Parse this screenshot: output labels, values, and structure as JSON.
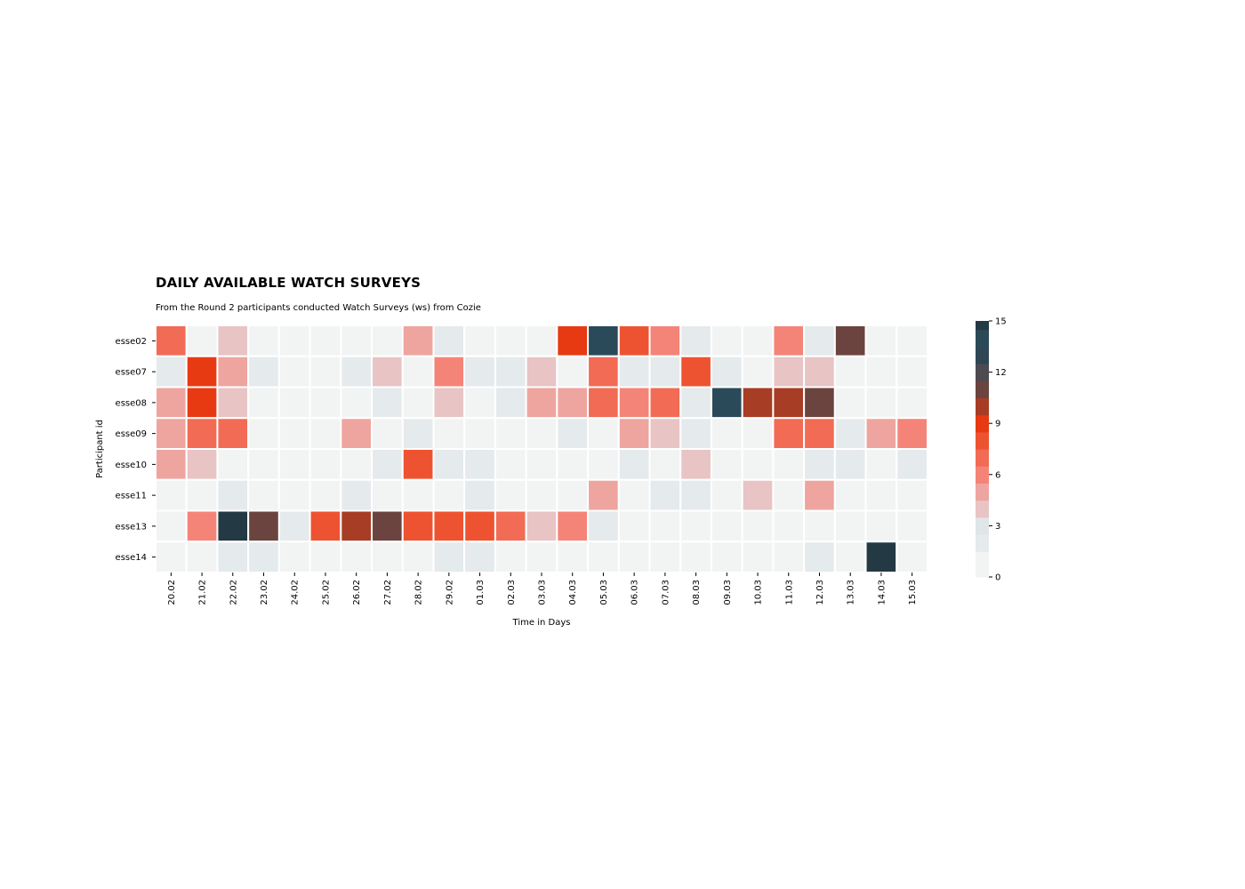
{
  "chart_data": {
    "type": "heatmap",
    "title": "DAILY AVAILABLE WATCH SURVEYS",
    "subtitle": "From the Round 2 participants conducted Watch Surveys (ws) from Cozie",
    "xlabel": "Time in Days",
    "ylabel": "Participant id",
    "x": [
      "20.02",
      "21.02",
      "22.02",
      "23.02",
      "24.02",
      "25.02",
      "26.02",
      "27.02",
      "28.02",
      "29.02",
      "01.03",
      "02.03",
      "03.03",
      "04.03",
      "05.03",
      "06.03",
      "07.03",
      "08.03",
      "09.03",
      "10.03",
      "11.03",
      "12.03",
      "13.03",
      "14.03",
      "15.03"
    ],
    "y": [
      "esse02",
      "esse07",
      "esse08",
      "esse09",
      "esse10",
      "esse11",
      "esse13",
      "esse14"
    ],
    "values": [
      [
        7,
        1,
        4,
        1,
        1,
        1,
        1,
        1,
        5,
        2,
        1,
        1,
        1,
        9,
        14,
        8,
        6,
        2,
        1,
        1,
        6,
        2,
        11,
        1,
        1
      ],
      [
        2,
        9,
        5,
        2,
        1,
        1,
        2,
        4,
        1,
        6,
        2,
        2,
        4,
        1,
        7,
        2,
        2,
        8,
        2,
        1,
        4,
        4,
        1,
        1,
        1
      ],
      [
        5,
        9,
        4,
        1,
        1,
        1,
        1,
        2,
        1,
        4,
        1,
        2,
        5,
        5,
        7,
        6,
        7,
        2,
        14,
        10,
        10,
        11,
        1,
        1,
        1
      ],
      [
        5,
        7,
        7,
        1,
        1,
        1,
        5,
        1,
        2,
        1,
        1,
        1,
        1,
        2,
        1,
        5,
        4,
        2,
        1,
        1,
        7,
        7,
        2,
        5,
        6
      ],
      [
        5,
        4,
        1,
        1,
        1,
        1,
        1,
        2,
        8,
        2,
        2,
        1,
        1,
        1,
        1,
        2,
        1,
        4,
        1,
        1,
        1,
        2,
        2,
        1,
        2
      ],
      [
        1,
        1,
        2,
        1,
        1,
        1,
        2,
        1,
        1,
        1,
        2,
        1,
        1,
        1,
        5,
        1,
        2,
        2,
        1,
        4,
        1,
        5,
        1,
        1,
        1
      ],
      [
        1,
        6,
        15,
        11,
        2,
        8,
        10,
        11,
        8,
        8,
        8,
        7,
        4,
        6,
        2,
        1,
        1,
        1,
        1,
        1,
        1,
        1,
        1,
        1,
        1
      ],
      [
        1,
        1,
        2,
        2,
        1,
        1,
        1,
        1,
        1,
        2,
        2,
        1,
        1,
        1,
        1,
        1,
        1,
        1,
        1,
        1,
        1,
        2,
        1,
        15,
        1
      ]
    ],
    "colorbar": {
      "min": 0,
      "max": 15,
      "ticks": [
        0,
        3,
        6,
        9,
        12,
        15
      ]
    },
    "colors": {
      "0": "#f2f4f4",
      "1": "#f2f4f4",
      "2": "#e5eaec",
      "3": "#e0e5e8",
      "4": "#e8c4c4",
      "5": "#eea59f",
      "6": "#f58478",
      "7": "#f26b55",
      "8": "#ee5331",
      "9": "#e73a12",
      "10": "#a83d25",
      "11": "#6b443f",
      "12": "#4c4c50",
      "13": "#2f4655",
      "14": "#2b4a59",
      "15": "#233944"
    }
  }
}
